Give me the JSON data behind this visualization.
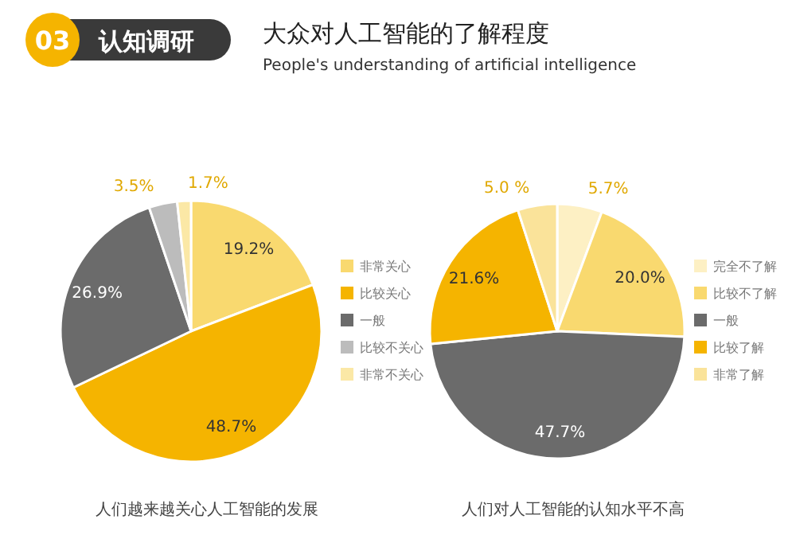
{
  "chart_data": [
    {
      "type": "pie",
      "title": "大众对人工智能的了解程度",
      "subtitle": "People's understanding of artificial intelligence",
      "annotations": [
        "03",
        "认知调研",
        "人们越来越关心人工智能的发展"
      ],
      "legend": "right",
      "categories": [
        "非常关心",
        "比较关心",
        "一般",
        "比较不关心",
        "非常不关心"
      ],
      "values": [
        19.2,
        48.7,
        26.9,
        3.5,
        1.7
      ],
      "value_labels": [
        "19.2%",
        "48.7%",
        "26.9%",
        "3.5%",
        "1.7%"
      ],
      "colors": [
        "#f9d96f",
        "#f5b400",
        "#6b6b6b",
        "#bcbcbc",
        "#fbe8a6"
      ]
    },
    {
      "type": "pie",
      "annotations": [
        "人们对人工智能的认知水平不高"
      ],
      "legend": "right",
      "categories": [
        "完全不了解",
        "比较不了解",
        "一般",
        "比较了解",
        "非常了解"
      ],
      "values": [
        5.7,
        20.0,
        47.7,
        21.6,
        5.0
      ],
      "value_labels": [
        "5.7%",
        "20.0%",
        "47.7%",
        "21.6%",
        "5.0 %"
      ],
      "colors": [
        "#fdf0c4",
        "#f9d96f",
        "#6b6b6b",
        "#f5b400",
        "#fae39a"
      ]
    }
  ]
}
